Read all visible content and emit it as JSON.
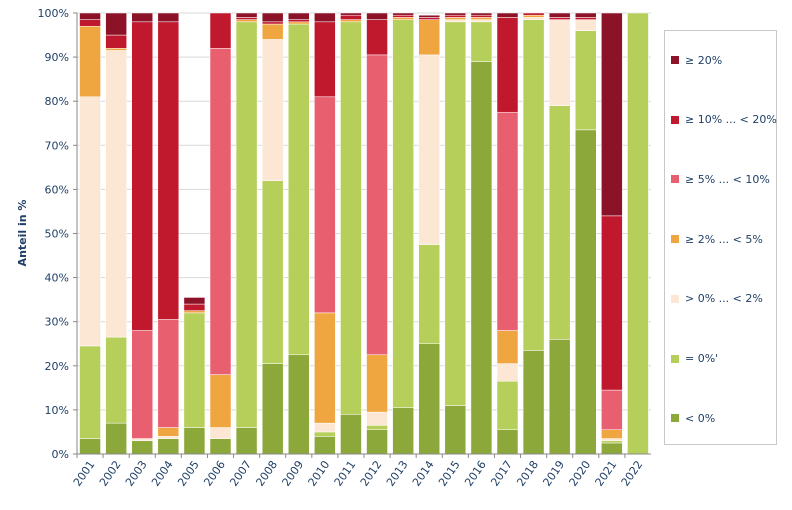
{
  "chart_data": {
    "type": "stacked-bar",
    "ylabel": "Anteil in %",
    "ylim": [
      0,
      100
    ],
    "yticks": [
      "0%",
      "10%",
      "20%",
      "30%",
      "40%",
      "50%",
      "60%",
      "70%",
      "80%",
      "90%",
      "100%"
    ],
    "categories": [
      "2001",
      "2002",
      "2003",
      "2004",
      "2005",
      "2006",
      "2007",
      "2008",
      "2009",
      "2010",
      "2011",
      "2012",
      "2013",
      "2014",
      "2015",
      "2016",
      "2017",
      "2018",
      "2019",
      "2020",
      "2021",
      "2022"
    ],
    "legend_position": "right",
    "series": [
      {
        "name": "< 0%",
        "color": "#8da83a",
        "values": [
          3.5,
          7,
          3,
          3.5,
          6,
          3.5,
          6,
          20.5,
          22.5,
          4,
          9,
          5.5,
          10.5,
          25,
          11,
          89,
          5.5,
          23.5,
          26,
          73.5,
          2.5,
          0
        ]
      },
      {
        "name": "= 0%'",
        "color": "#b5cf5a",
        "values": [
          21,
          19.5,
          0,
          0,
          26,
          0,
          92,
          41.5,
          75,
          1,
          89,
          1,
          88,
          22.5,
          87,
          9,
          11,
          75,
          53,
          22.5,
          0.5,
          100
        ]
      },
      {
        "name": "> 0% ... < 2%",
        "color": "#fce7d5",
        "values": [
          56.5,
          65,
          0.5,
          0.5,
          0,
          2.5,
          0,
          32,
          0,
          2,
          0,
          3,
          0,
          43,
          0.5,
          0.5,
          4,
          0.5,
          19.5,
          2.5,
          0.5,
          0
        ]
      },
      {
        "name": "≥ 2% ... < 5%",
        "color": "#f0a640",
        "values": [
          16,
          0.5,
          0,
          2,
          0.5,
          12,
          0.5,
          3.5,
          0.5,
          25,
          0.5,
          13,
          0.5,
          8,
          0.5,
          0.5,
          7.5,
          0.5,
          0,
          0,
          2,
          0
        ]
      },
      {
        "name": "≥ 5% ... < 10%",
        "color": "#e86070",
        "values": [
          0,
          0,
          24.5,
          24.5,
          0,
          74,
          0,
          0,
          0,
          49,
          0,
          68,
          0,
          0,
          0,
          0,
          49.5,
          0,
          0,
          0,
          9,
          0
        ]
      },
      {
        "name": "≥ 10% ... < 20%",
        "color": "#c0182c",
        "values": [
          1.5,
          3,
          70,
          67.5,
          1.5,
          8,
          0.5,
          0.5,
          0.5,
          17,
          1,
          8,
          0.5,
          0.5,
          0.5,
          0.5,
          21.5,
          0.5,
          0.5,
          0.5,
          39.5,
          0
        ]
      },
      {
        "name": "≥ 20%",
        "color": "#8c1228",
        "values": [
          1.5,
          5,
          2,
          2,
          1.5,
          0,
          1,
          2,
          1.5,
          2,
          0.5,
          1.5,
          0.5,
          0.5,
          0.5,
          0.5,
          1,
          0,
          1,
          1,
          46,
          0
        ]
      }
    ]
  }
}
